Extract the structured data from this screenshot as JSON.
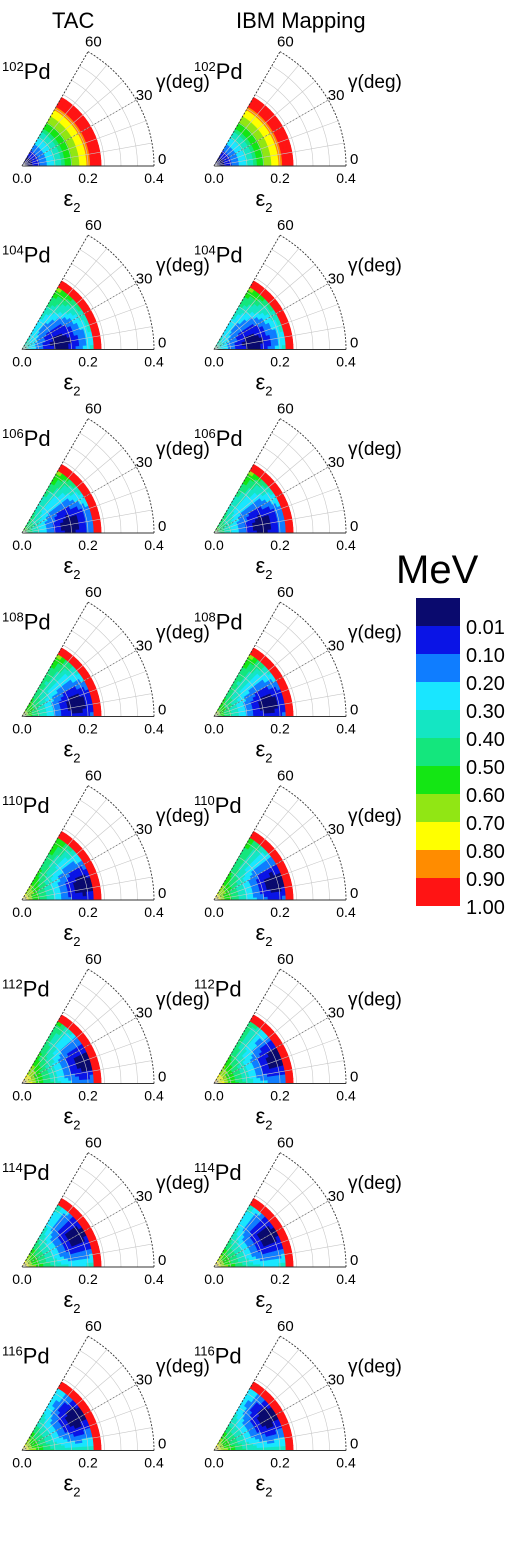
{
  "headers": {
    "left": "TAC",
    "right": "IBM Mapping"
  },
  "panel_labels": {
    "axis_x": "ε",
    "axis_x_sub": "2",
    "gamma_axis": "γ(deg)",
    "angle_ticks": [
      "60",
      "30",
      "0"
    ],
    "radial_ticks": [
      "0.0",
      "0.2",
      "0.4"
    ]
  },
  "colorbar": {
    "title": "MeV",
    "levels": [
      "0.01",
      "0.10",
      "0.20",
      "0.30",
      "0.40",
      "0.50",
      "0.60",
      "0.70",
      "0.80",
      "0.90",
      "1.00"
    ],
    "colors": [
      "#0a0a6e",
      "#0a14e6",
      "#0f7dff",
      "#19e6ff",
      "#14e6c3",
      "#14e67d",
      "#14e614",
      "#91e614",
      "#ffff00",
      "#ff8c00",
      "#ff1414"
    ]
  },
  "chart_data": [
    {
      "type": "heatmap",
      "nucleus": "102Pd",
      "mass_number": "102",
      "element": "Pd",
      "method": "TAC",
      "min_eps": 0.0,
      "min_gamma_deg": 0,
      "rmax": 0.4
    },
    {
      "type": "heatmap",
      "nucleus": "102Pd",
      "mass_number": "102",
      "element": "Pd",
      "method": "IBM Mapping",
      "min_eps": 0.0,
      "min_gamma_deg": 0,
      "rmax": 0.4
    },
    {
      "type": "heatmap",
      "nucleus": "104Pd",
      "mass_number": "104",
      "element": "Pd",
      "method": "TAC",
      "min_eps": 0.12,
      "min_gamma_deg": 10,
      "rmax": 0.4
    },
    {
      "type": "heatmap",
      "nucleus": "104Pd",
      "mass_number": "104",
      "element": "Pd",
      "method": "IBM Mapping",
      "min_eps": 0.12,
      "min_gamma_deg": 10,
      "rmax": 0.4
    },
    {
      "type": "heatmap",
      "nucleus": "106Pd",
      "mass_number": "106",
      "element": "Pd",
      "method": "TAC",
      "min_eps": 0.15,
      "min_gamma_deg": 10,
      "rmax": 0.4
    },
    {
      "type": "heatmap",
      "nucleus": "106Pd",
      "mass_number": "106",
      "element": "Pd",
      "method": "IBM Mapping",
      "min_eps": 0.15,
      "min_gamma_deg": 10,
      "rmax": 0.4
    },
    {
      "type": "heatmap",
      "nucleus": "108Pd",
      "mass_number": "108",
      "element": "Pd",
      "method": "TAC",
      "min_eps": 0.17,
      "min_gamma_deg": 12,
      "rmax": 0.4
    },
    {
      "type": "heatmap",
      "nucleus": "108Pd",
      "mass_number": "108",
      "element": "Pd",
      "method": "IBM Mapping",
      "min_eps": 0.17,
      "min_gamma_deg": 12,
      "rmax": 0.4
    },
    {
      "type": "heatmap",
      "nucleus": "110Pd",
      "mass_number": "110",
      "element": "Pd",
      "method": "TAC",
      "min_eps": 0.19,
      "min_gamma_deg": 14,
      "rmax": 0.4
    },
    {
      "type": "heatmap",
      "nucleus": "110Pd",
      "mass_number": "110",
      "element": "Pd",
      "method": "IBM Mapping",
      "min_eps": 0.19,
      "min_gamma_deg": 16,
      "rmax": 0.4
    },
    {
      "type": "heatmap",
      "nucleus": "112Pd",
      "mass_number": "112",
      "element": "Pd",
      "method": "TAC",
      "min_eps": 0.2,
      "min_gamma_deg": 20,
      "rmax": 0.4
    },
    {
      "type": "heatmap",
      "nucleus": "112Pd",
      "mass_number": "112",
      "element": "Pd",
      "method": "IBM Mapping",
      "min_eps": 0.2,
      "min_gamma_deg": 22,
      "rmax": 0.4
    },
    {
      "type": "heatmap",
      "nucleus": "114Pd",
      "mass_number": "114",
      "element": "Pd",
      "method": "TAC",
      "min_eps": 0.19,
      "min_gamma_deg": 30,
      "rmax": 0.4
    },
    {
      "type": "heatmap",
      "nucleus": "114Pd",
      "mass_number": "114",
      "element": "Pd",
      "method": "IBM Mapping",
      "min_eps": 0.19,
      "min_gamma_deg": 30,
      "rmax": 0.4
    },
    {
      "type": "heatmap",
      "nucleus": "116Pd",
      "mass_number": "116",
      "element": "Pd",
      "method": "TAC",
      "min_eps": 0.19,
      "min_gamma_deg": 32,
      "rmax": 0.4
    },
    {
      "type": "heatmap",
      "nucleus": "116Pd",
      "mass_number": "116",
      "element": "Pd",
      "method": "IBM Mapping",
      "min_eps": 0.19,
      "min_gamma_deg": 32,
      "rmax": 0.4
    }
  ]
}
